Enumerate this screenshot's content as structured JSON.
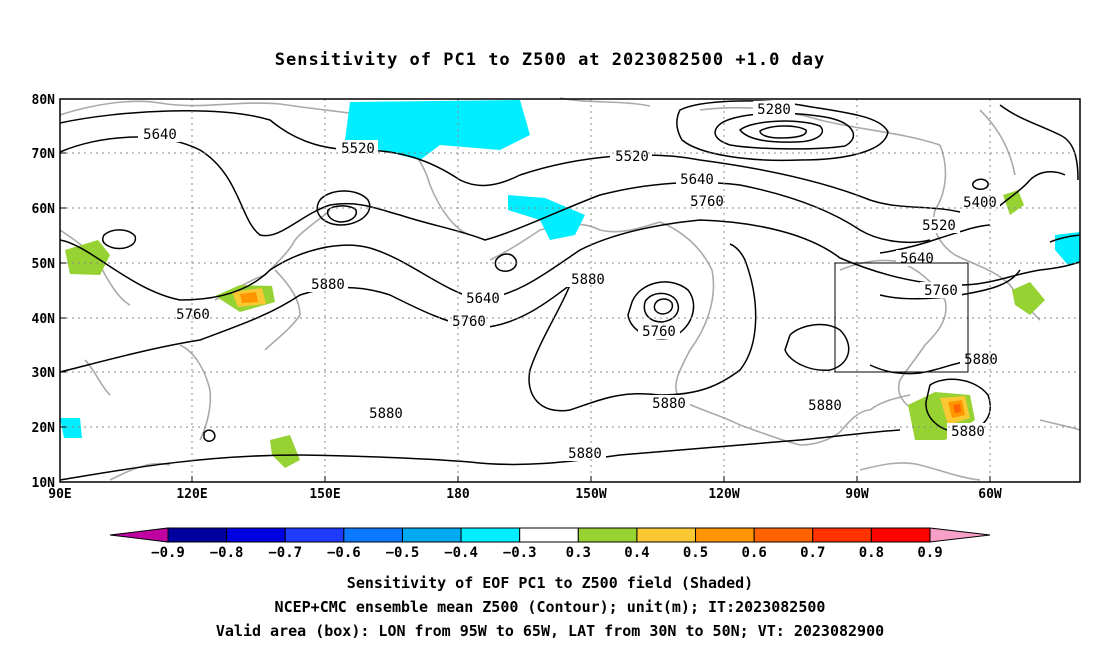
{
  "title": "Sensitivity of PC1 to Z500 at 2023082500 +1.0 day",
  "map": {
    "lat_labels": [
      "80N",
      "70N",
      "60N",
      "50N",
      "40N",
      "30N",
      "20N",
      "10N"
    ],
    "lon_labels": [
      "90E",
      "120E",
      "150E",
      "180",
      "150W",
      "120W",
      "90W",
      "60W"
    ],
    "contour_labels": [
      {
        "text": "5640"
      },
      {
        "text": "5520"
      },
      {
        "text": "5520"
      },
      {
        "text": "5280"
      },
      {
        "text": "5640"
      },
      {
        "text": "5760"
      },
      {
        "text": "5400"
      },
      {
        "text": "5520"
      },
      {
        "text": "5640"
      },
      {
        "text": "5760"
      },
      {
        "text": "5640"
      },
      {
        "text": "5760"
      },
      {
        "text": "5880"
      },
      {
        "text": "5880"
      },
      {
        "text": "5760"
      },
      {
        "text": "5760"
      },
      {
        "text": "5880"
      },
      {
        "text": "5880"
      },
      {
        "text": "5880"
      },
      {
        "text": "5880"
      },
      {
        "text": "5880"
      },
      {
        "text": "5880"
      }
    ],
    "valid_box": {
      "lon": [
        "95W",
        "65W"
      ],
      "lat": [
        "30N",
        "50N"
      ]
    }
  },
  "colorbar": {
    "labels": [
      "−0.9",
      "−0.8",
      "−0.7",
      "−0.6",
      "−0.5",
      "−0.4",
      "−0.3",
      "0.3",
      "0.4",
      "0.5",
      "0.6",
      "0.7",
      "0.8",
      "0.9"
    ],
    "colors": [
      "#0000a0",
      "#0000e0",
      "#1e3cff",
      "#0a78ff",
      "#00aaf0",
      "#00eeff",
      "#ffffff",
      "#96d232",
      "#fac832",
      "#ff9600",
      "#ff6400",
      "#ff3200",
      "#ff0000"
    ],
    "low_arrow_color": "#c000a0",
    "high_arrow_color": "#f7a0c8"
  },
  "captions": [
    "Sensitivity of EOF PC1 to Z500 field (Shaded)",
    "NCEP+CMC ensemble mean Z500 (Contour); unit(m); IT:2023082500",
    "Valid area (box): LON from 95W to 65W, LAT from 30N to 50N; VT: 2023082900"
  ]
}
